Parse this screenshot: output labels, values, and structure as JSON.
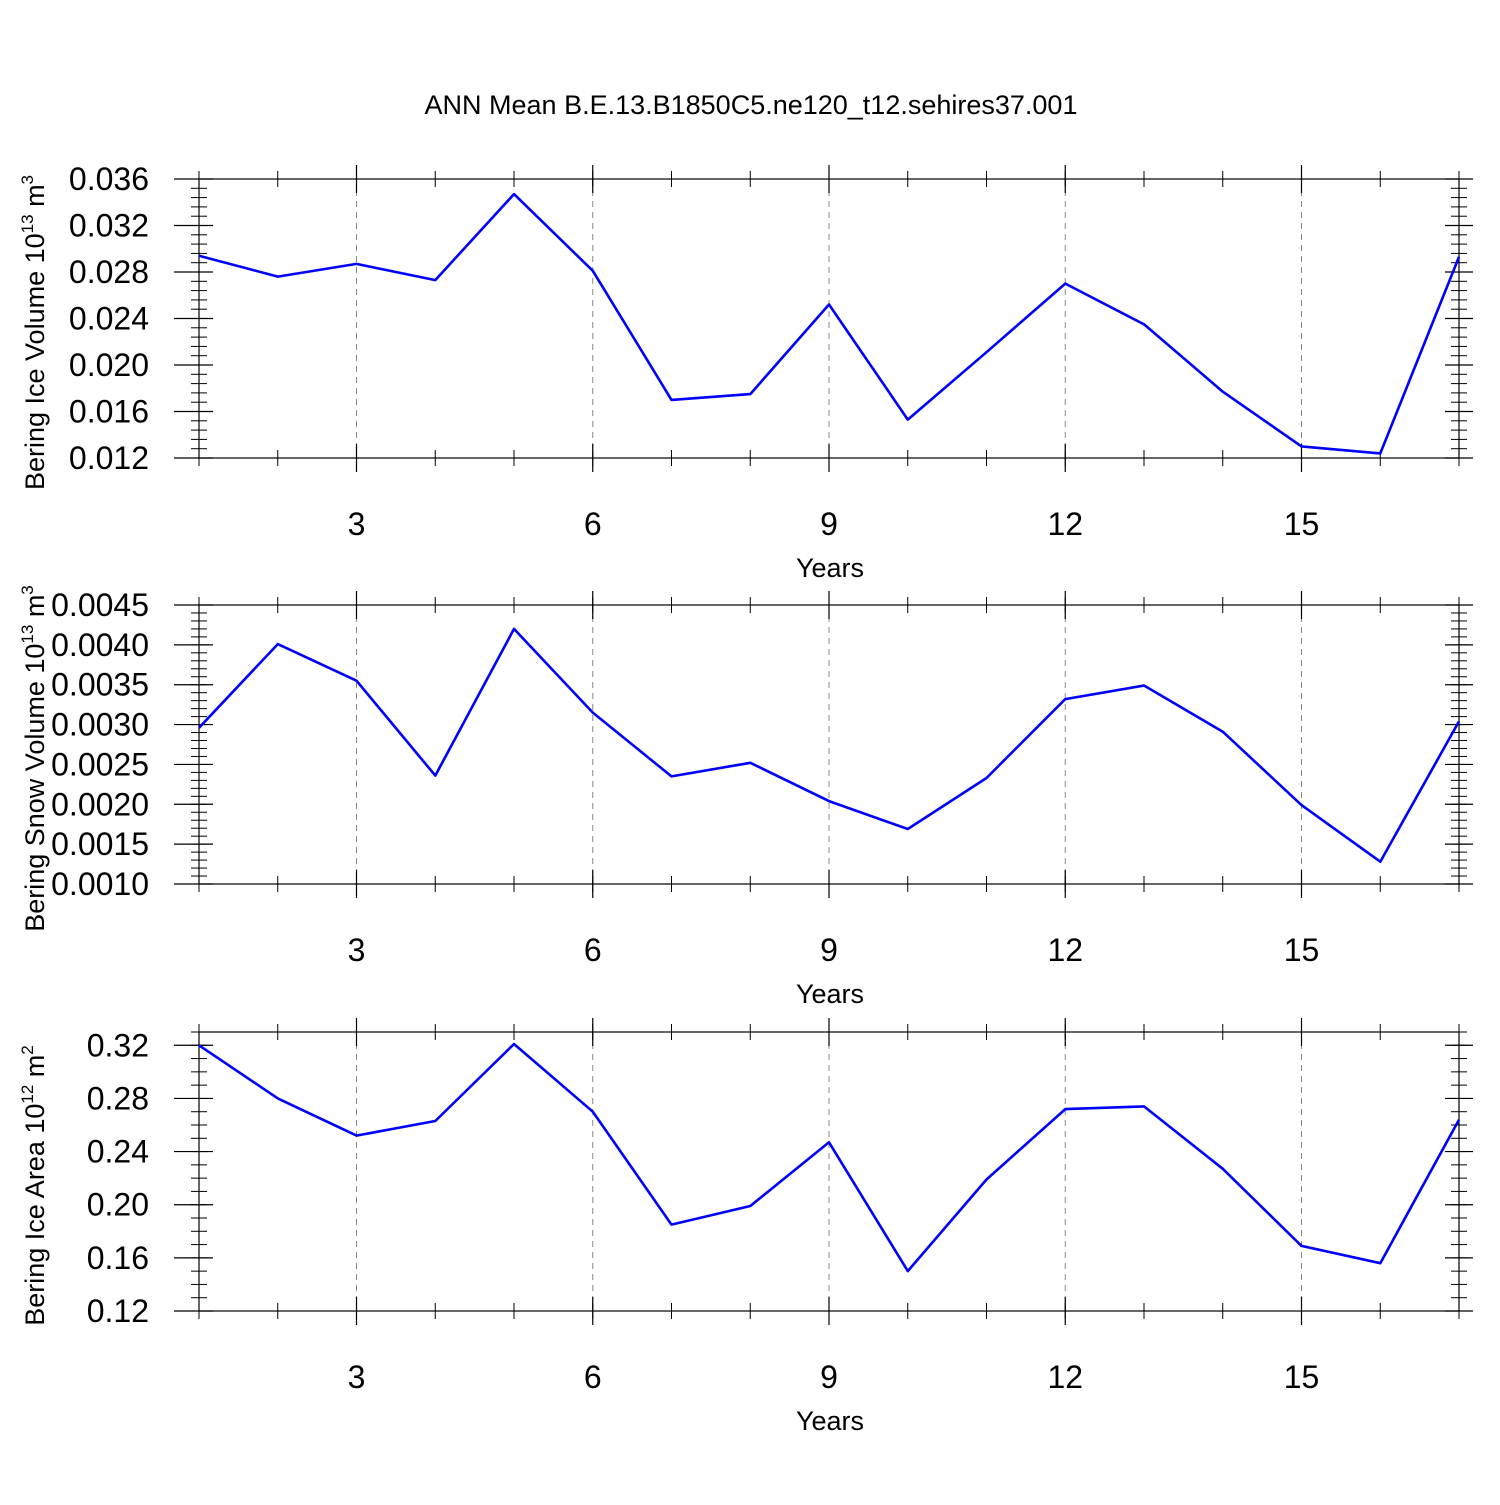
{
  "title": "ANN Mean B.E.13.B1850C5.ne120_t12.sehires37.001",
  "line_color": "#0000ff",
  "chart_data": [
    {
      "type": "line",
      "ylabel": "Bering Ice Volume 10",
      "ylabel_exp": "13",
      "ylabel_unit": "m",
      "ylabel_unit_exp": "3",
      "xlabel": "Years",
      "xlim": [
        1,
        17
      ],
      "ylim": [
        0.012,
        0.036
      ],
      "yticks": [
        0.012,
        0.016,
        0.02,
        0.024,
        0.028,
        0.032,
        0.036
      ],
      "ytick_labels": [
        "0.012",
        "0.016",
        "0.020",
        "0.024",
        "0.028",
        "0.032",
        "0.036"
      ],
      "ytick_minor_step": 0.0008,
      "xticks": [
        3,
        6,
        9,
        12,
        15
      ],
      "xtick_labels": [
        "3",
        "6",
        "9",
        "12",
        "15"
      ],
      "x": [
        1,
        2,
        3,
        4,
        5,
        6,
        7,
        8,
        9,
        10,
        11,
        12,
        13,
        14,
        15,
        16,
        17
      ],
      "values": [
        0.0294,
        0.0276,
        0.0287,
        0.0273,
        0.0347,
        0.0281,
        0.017,
        0.0175,
        0.0252,
        0.0153,
        0.0211,
        0.027,
        0.0235,
        0.0177,
        0.013,
        0.0124,
        0.0293
      ]
    },
    {
      "type": "line",
      "ylabel": "Bering Snow Volume 10",
      "ylabel_exp": "13",
      "ylabel_unit": "m",
      "ylabel_unit_exp": "3",
      "xlabel": "Years",
      "xlim": [
        1,
        17
      ],
      "ylim": [
        0.001,
        0.0045
      ],
      "yticks": [
        0.001,
        0.0015,
        0.002,
        0.0025,
        0.003,
        0.0035,
        0.004,
        0.0045
      ],
      "ytick_labels": [
        "0.0010",
        "0.0015",
        "0.0020",
        "0.0025",
        "0.0030",
        "0.0035",
        "0.0040",
        "0.0045"
      ],
      "ytick_minor_step": 0.0001,
      "xticks": [
        3,
        6,
        9,
        12,
        15
      ],
      "xtick_labels": [
        "3",
        "6",
        "9",
        "12",
        "15"
      ],
      "x": [
        1,
        2,
        3,
        4,
        5,
        6,
        7,
        8,
        9,
        10,
        11,
        12,
        13,
        14,
        15,
        16,
        17
      ],
      "values": [
        0.00296,
        0.00401,
        0.00355,
        0.00236,
        0.0042,
        0.00315,
        0.00235,
        0.00252,
        0.00204,
        0.00169,
        0.00233,
        0.00332,
        0.00349,
        0.00291,
        0.00199,
        0.00128,
        0.00304
      ]
    },
    {
      "type": "line",
      "ylabel": "Bering Ice Area 10",
      "ylabel_exp": "12",
      "ylabel_unit": "m",
      "ylabel_unit_exp": "2",
      "xlabel": "Years",
      "xlim": [
        1,
        17
      ],
      "ylim": [
        0.12,
        0.33
      ],
      "yticks": [
        0.12,
        0.16,
        0.2,
        0.24,
        0.28,
        0.32
      ],
      "ytick_labels": [
        "0.12",
        "0.16",
        "0.20",
        "0.24",
        "0.28",
        "0.32"
      ],
      "ytick_minor_step": 0.01,
      "xticks": [
        3,
        6,
        9,
        12,
        15
      ],
      "xtick_labels": [
        "3",
        "6",
        "9",
        "12",
        "15"
      ],
      "x": [
        1,
        2,
        3,
        4,
        5,
        6,
        7,
        8,
        9,
        10,
        11,
        12,
        13,
        14,
        15,
        16,
        17
      ],
      "values": [
        0.32,
        0.28,
        0.252,
        0.263,
        0.321,
        0.27,
        0.185,
        0.199,
        0.247,
        0.15,
        0.219,
        0.272,
        0.274,
        0.227,
        0.169,
        0.156,
        0.264
      ]
    }
  ]
}
